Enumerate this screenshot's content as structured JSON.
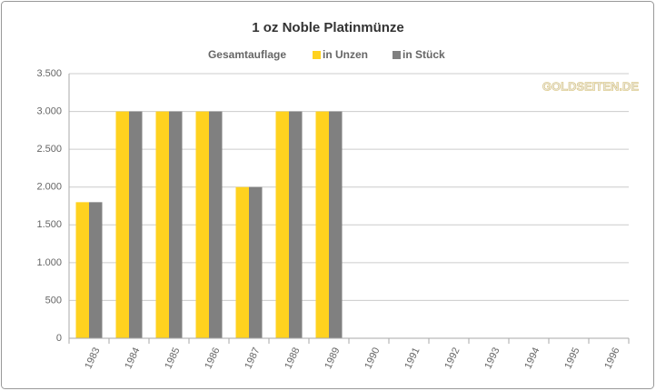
{
  "chart_data": {
    "type": "bar",
    "title": "1 oz Noble Platinmünze",
    "legend_title": "Gesamtauflage",
    "watermark": "GOLDSEITEN.DE",
    "categories": [
      "1983",
      "1984",
      "1985",
      "1986",
      "1987",
      "1988",
      "1989",
      "1990",
      "1991",
      "1992",
      "1993",
      "1994",
      "1995",
      "1996"
    ],
    "series": [
      {
        "name": "in Unzen",
        "color": "#ffd21f",
        "values": [
          1800,
          3000,
          3000,
          3000,
          2000,
          3000,
          3000,
          null,
          null,
          null,
          null,
          null,
          null,
          null
        ]
      },
      {
        "name": "in Stück",
        "color": "#808080",
        "values": [
          1800,
          3000,
          3000,
          3000,
          2000,
          3000,
          3000,
          null,
          null,
          null,
          null,
          null,
          null,
          null
        ]
      }
    ],
    "ylim": [
      0,
      3500
    ],
    "yticks": [
      0,
      500,
      {
        "value": 1000,
        "label": "1.000"
      },
      {
        "value": 1500,
        "label": "1.500"
      },
      {
        "value": 2000,
        "label": "2.000"
      },
      {
        "value": 2500,
        "label": "2.500"
      },
      {
        "value": 3000,
        "label": "3.000"
      },
      {
        "value": 3500,
        "label": "3.500"
      }
    ],
    "grid": true
  }
}
